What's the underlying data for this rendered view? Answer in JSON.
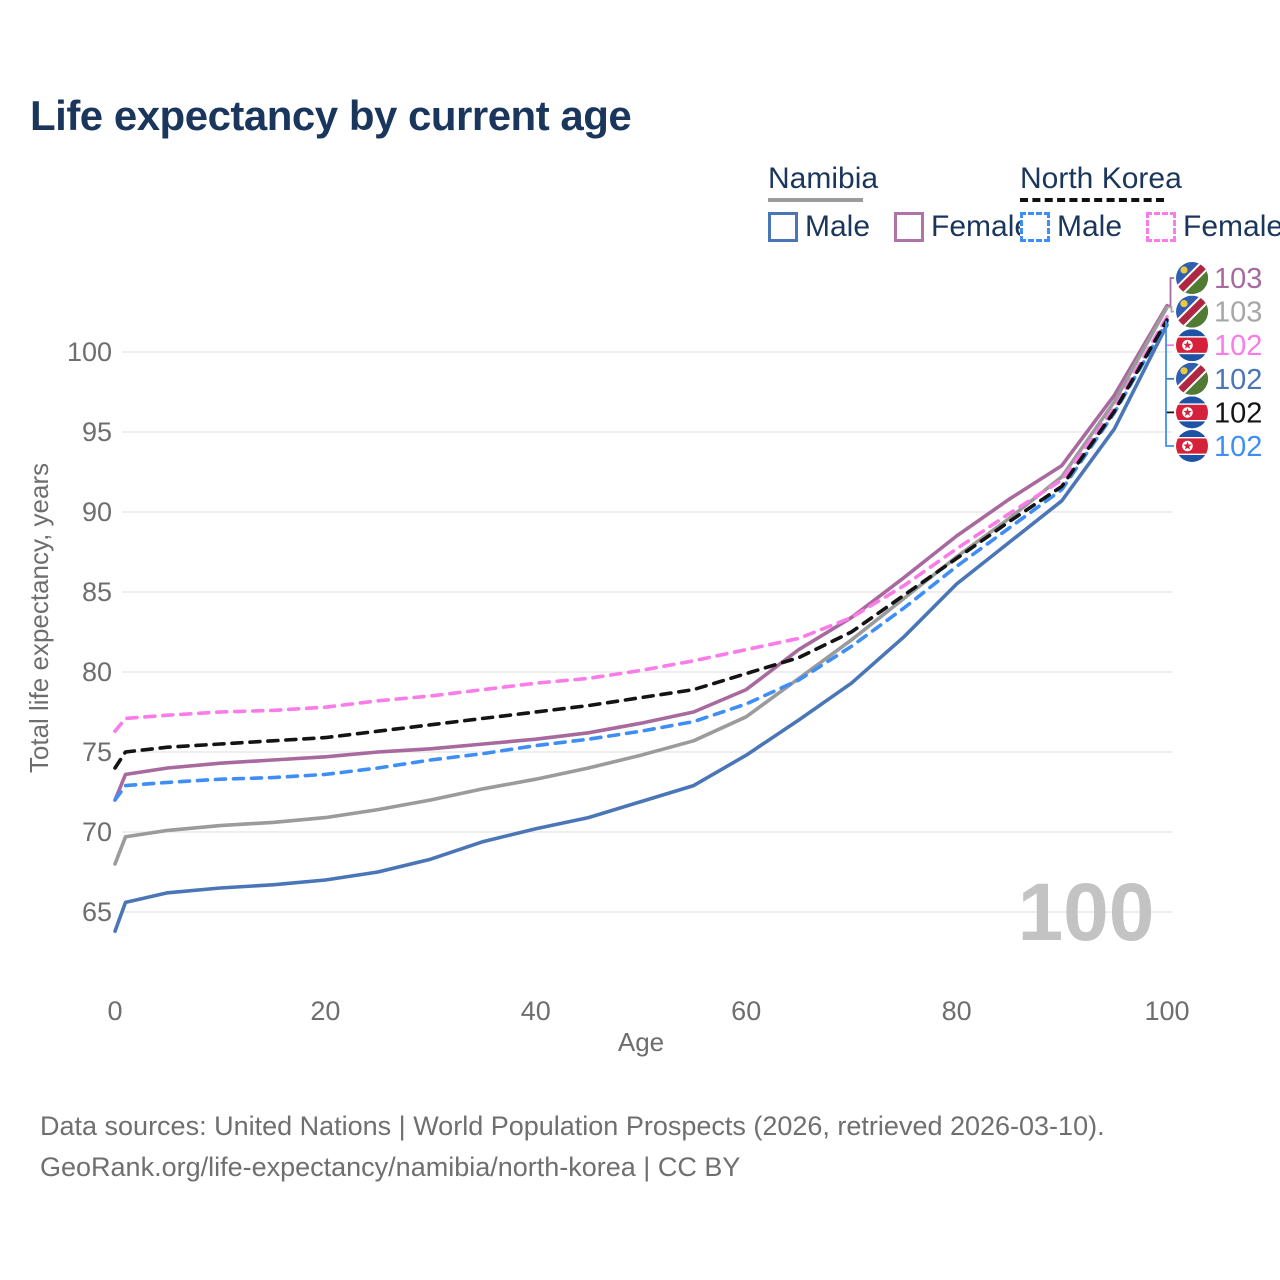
{
  "title": "Life expectancy by current age",
  "legend": {
    "groups": [
      {
        "label": "Namibia",
        "line_style": "solid",
        "underline_color": "#9b9b9b",
        "items": [
          {
            "label": "Male",
            "color": "#4a76b8",
            "dashed": false
          },
          {
            "label": "Female",
            "color": "#ae74a8",
            "dashed": false
          }
        ]
      },
      {
        "label": "North Korea",
        "line_style": "dashed",
        "underline_color": "#111111",
        "items": [
          {
            "label": "Male",
            "color": "#3f8ef5",
            "dashed": true
          },
          {
            "label": "Female",
            "color": "#f97ce8",
            "dashed": true
          }
        ]
      }
    ]
  },
  "chart_data": {
    "type": "line",
    "title": "Life expectancy by current age",
    "xlabel": "Age",
    "ylabel": "Total life expectancy, years",
    "xlim": [
      0,
      100
    ],
    "ylim": [
      63,
      104
    ],
    "xticks": [
      0,
      20,
      40,
      60,
      80,
      100
    ],
    "yticks": [
      65,
      70,
      75,
      80,
      85,
      90,
      95,
      100
    ],
    "grid": "horizontal",
    "legend_position": "top-right",
    "x": [
      0,
      1,
      5,
      10,
      15,
      20,
      25,
      30,
      35,
      40,
      45,
      50,
      55,
      60,
      65,
      70,
      75,
      80,
      85,
      90,
      95,
      100
    ],
    "series": [
      {
        "id": "namibia-male",
        "name": "Namibia Male",
        "color": "#4a76b8",
        "dashed": false,
        "values": [
          63.8,
          65.6,
          66.2,
          66.5,
          66.7,
          67.0,
          67.5,
          68.3,
          69.4,
          70.2,
          70.9,
          71.9,
          72.9,
          74.8,
          77.0,
          79.3,
          82.2,
          85.5,
          88.1,
          90.7,
          95.2,
          101.7
        ]
      },
      {
        "id": "namibia-female",
        "name": "Namibia Female",
        "color": "#a8699e",
        "dashed": false,
        "values": [
          72.0,
          73.6,
          74.0,
          74.3,
          74.5,
          74.7,
          75.0,
          75.2,
          75.5,
          75.8,
          76.2,
          76.8,
          77.5,
          78.9,
          81.4,
          83.4,
          85.9,
          88.5,
          90.8,
          92.9,
          97.3,
          102.9
        ]
      },
      {
        "id": "namibia-both",
        "name": "Namibia Both sexes",
        "color": "#9b9b9b",
        "dashed": false,
        "values": [
          68.0,
          69.7,
          70.1,
          70.4,
          70.6,
          70.9,
          71.4,
          72.0,
          72.7,
          73.3,
          74.0,
          74.8,
          75.7,
          77.2,
          79.6,
          82.0,
          84.6,
          87.2,
          89.6,
          92.2,
          96.9,
          102.8
        ]
      },
      {
        "id": "north-korea-male",
        "name": "North Korea Male",
        "color": "#3f8ef5",
        "dashed": true,
        "values": [
          72.0,
          72.9,
          73.1,
          73.3,
          73.4,
          73.6,
          74.0,
          74.5,
          74.9,
          75.4,
          75.8,
          76.3,
          76.9,
          78.0,
          79.5,
          81.6,
          84.0,
          86.6,
          89.0,
          91.4,
          96.2,
          101.9
        ]
      },
      {
        "id": "north-korea-female",
        "name": "North Korea Female",
        "color": "#f97ce8",
        "dashed": true,
        "values": [
          76.3,
          77.1,
          77.3,
          77.5,
          77.6,
          77.8,
          78.2,
          78.5,
          78.9,
          79.3,
          79.6,
          80.1,
          80.7,
          81.4,
          82.1,
          83.4,
          85.4,
          87.7,
          89.9,
          92.0,
          96.5,
          102.2
        ]
      },
      {
        "id": "north-korea-both",
        "name": "North Korea Both sexes",
        "color": "#141414",
        "dashed": true,
        "values": [
          74.0,
          75.0,
          75.3,
          75.5,
          75.7,
          75.9,
          76.3,
          76.7,
          77.1,
          77.5,
          77.9,
          78.4,
          78.9,
          79.9,
          80.9,
          82.5,
          84.8,
          87.1,
          89.4,
          91.6,
          96.3,
          102.0
        ]
      }
    ]
  },
  "end_labels": [
    {
      "flag": "namibia",
      "series_id": "namibia-female",
      "value": "103",
      "color": "#a8699e"
    },
    {
      "flag": "namibia",
      "series_id": "namibia-both",
      "value": "103",
      "color": "#a7a7a7"
    },
    {
      "flag": "north-korea",
      "series_id": "north-korea-female",
      "value": "102",
      "color": "#f97ce8"
    },
    {
      "flag": "namibia",
      "series_id": "namibia-male",
      "value": "102",
      "color": "#4a76b8"
    },
    {
      "flag": "north-korea",
      "series_id": "north-korea-both",
      "value": "102",
      "color": "#141414"
    },
    {
      "flag": "north-korea",
      "series_id": "north-korea-male",
      "value": "102",
      "color": "#3f8ef5"
    }
  ],
  "watermark": "100",
  "footer": {
    "line1": "Data sources: United Nations | World Population Prospects (2026, retrieved 2026-03-10).",
    "line2": "GeoRank.org/life-expectancy/namibia/north-korea | CC BY"
  },
  "colors": {
    "title_text": "#1b365d",
    "tick_text": "#6e6e6e",
    "gridline": "#e9e9e9",
    "watermark": "#c3c3c3",
    "footer_text": "#6f6f6f"
  }
}
